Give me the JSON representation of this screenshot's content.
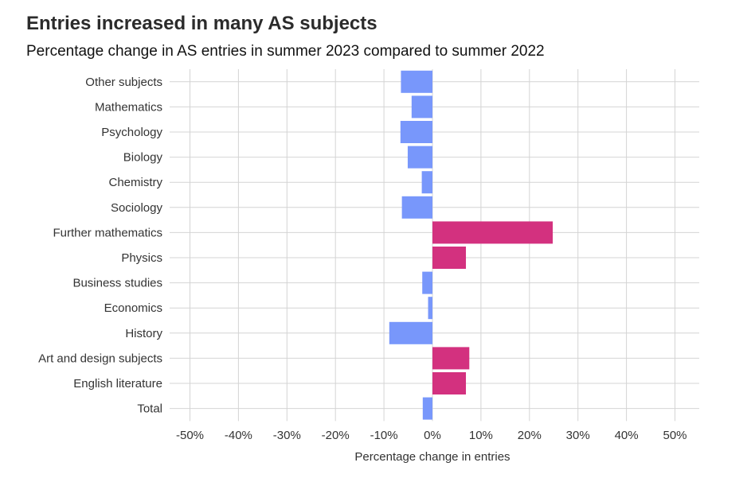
{
  "title": "Entries increased in many AS subjects",
  "subtitle": "Percentage change in AS entries in summer 2023 compared to summer 2022",
  "colors": {
    "decrease": "#7897fb",
    "increase": "#d3317f",
    "grid": "#d4d4d4"
  },
  "chart_data": {
    "type": "bar",
    "orientation": "horizontal",
    "xlabel": "Percentage change in entries",
    "ylabel": "",
    "xlim": [
      -50,
      50
    ],
    "x_ticks": [
      -50,
      -40,
      -30,
      -20,
      -10,
      0,
      10,
      20,
      30,
      40,
      50
    ],
    "x_tick_labels": [
      "-50%",
      "-40%",
      "-30%",
      "-20%",
      "-10%",
      "0%",
      "10%",
      "20%",
      "30%",
      "40%",
      "50%"
    ],
    "grid": true,
    "categories": [
      "Other subjects",
      "Mathematics",
      "Psychology",
      "Biology",
      "Chemistry",
      "Sociology",
      "Further mathematics",
      "Physics",
      "Business studies",
      "Economics",
      "History",
      "Art and design subjects",
      "English literature",
      "Total"
    ],
    "values": [
      -6.5,
      -4.3,
      -6.6,
      -5.1,
      -2.2,
      -6.3,
      24.8,
      6.9,
      -2.1,
      -0.9,
      -8.9,
      7.6,
      6.9,
      -2.0
    ]
  }
}
